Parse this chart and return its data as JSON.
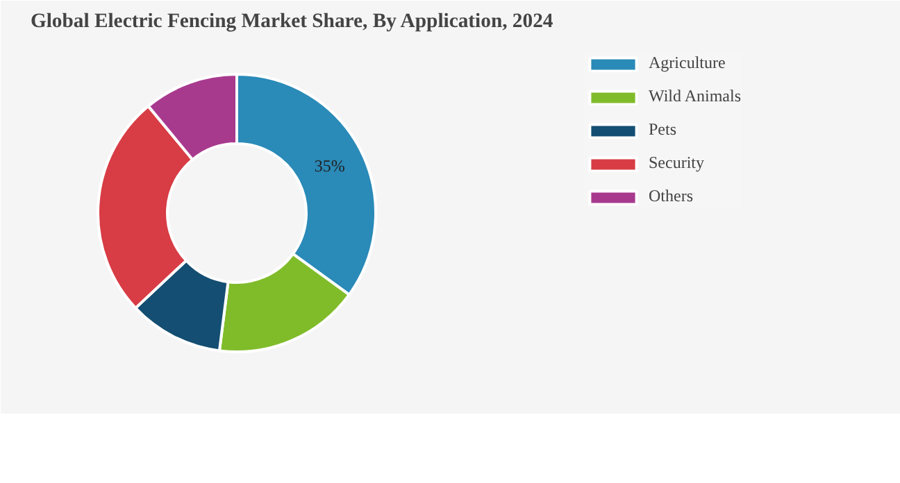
{
  "chart_data": {
    "type": "donut",
    "title": "Global Electric Fencing Market Share, By Application, 2024",
    "categories": [
      "Agriculture",
      "Wild Animals",
      "Pets",
      "Security",
      "Others"
    ],
    "values": [
      35,
      17,
      11,
      26,
      11
    ],
    "colors": [
      "#2a8ab8",
      "#80bc2a",
      "#144e72",
      "#d83c44",
      "#a83a8e"
    ],
    "value_labels": [
      "35%",
      null,
      null,
      null,
      null
    ],
    "legend": "right"
  }
}
